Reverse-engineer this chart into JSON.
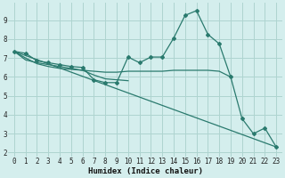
{
  "xlabel": "Humidex (Indice chaleur)",
  "bg_color": "#d4eeed",
  "grid_color": "#aed4d0",
  "line_color": "#2a7a6e",
  "xlim": [
    -0.5,
    23.5
  ],
  "ylim": [
    1.8,
    9.9
  ],
  "yticks": [
    2,
    3,
    4,
    5,
    6,
    7,
    8,
    9
  ],
  "xticks": [
    0,
    1,
    2,
    3,
    4,
    5,
    6,
    7,
    8,
    9,
    10,
    11,
    12,
    13,
    14,
    15,
    16,
    17,
    18,
    19,
    20,
    21,
    22,
    23
  ],
  "series_main": [
    [
      0,
      7.35
    ],
    [
      1,
      7.25
    ],
    [
      2,
      6.85
    ],
    [
      3,
      6.75
    ],
    [
      4,
      6.65
    ],
    [
      5,
      6.55
    ],
    [
      6,
      6.5
    ],
    [
      7,
      5.85
    ],
    [
      8,
      5.7
    ],
    [
      9,
      5.7
    ],
    [
      10,
      7.05
    ],
    [
      11,
      6.75
    ],
    [
      12,
      7.05
    ],
    [
      13,
      7.05
    ],
    [
      14,
      8.05
    ],
    [
      15,
      9.25
    ],
    [
      16,
      9.5
    ],
    [
      17,
      8.25
    ],
    [
      18,
      7.75
    ],
    [
      19,
      6.0
    ],
    [
      20,
      3.8
    ],
    [
      21,
      3.0
    ],
    [
      22,
      3.3
    ],
    [
      23,
      2.3
    ]
  ],
  "line_diagonal": [
    [
      0,
      7.35
    ],
    [
      23,
      2.3
    ]
  ],
  "line_flat": [
    [
      0,
      7.35
    ],
    [
      1,
      7.0
    ],
    [
      2,
      6.7
    ],
    [
      3,
      6.55
    ],
    [
      4,
      6.45
    ],
    [
      5,
      6.4
    ],
    [
      6,
      6.35
    ],
    [
      7,
      6.3
    ],
    [
      8,
      6.25
    ],
    [
      9,
      6.25
    ],
    [
      10,
      6.3
    ],
    [
      11,
      6.3
    ],
    [
      12,
      6.3
    ],
    [
      13,
      6.3
    ],
    [
      14,
      6.35
    ],
    [
      15,
      6.35
    ],
    [
      16,
      6.35
    ],
    [
      17,
      6.35
    ],
    [
      18,
      6.3
    ],
    [
      19,
      6.0
    ]
  ],
  "line_converge": [
    [
      0,
      7.35
    ],
    [
      1,
      6.9
    ],
    [
      2,
      6.75
    ],
    [
      3,
      6.65
    ],
    [
      4,
      6.55
    ],
    [
      5,
      6.45
    ],
    [
      6,
      6.35
    ],
    [
      7,
      6.1
    ],
    [
      8,
      5.9
    ],
    [
      9,
      5.85
    ],
    [
      10,
      5.8
    ]
  ]
}
